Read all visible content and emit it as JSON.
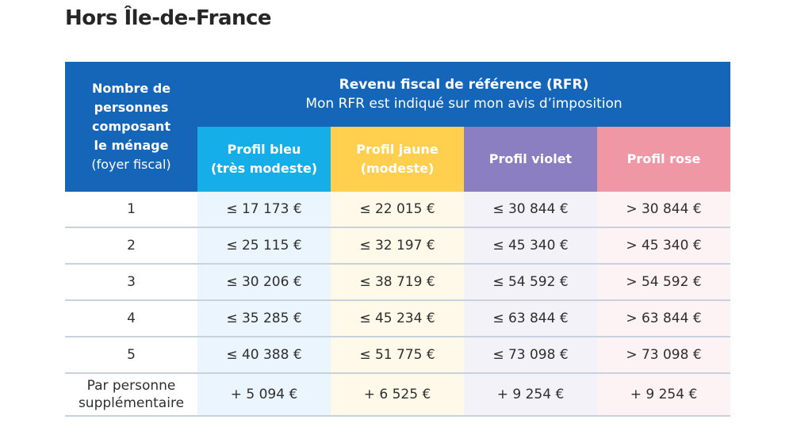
{
  "title": "Hors Île-de-France",
  "header": {
    "household_line1": "Nombre de",
    "household_line2": "personnes",
    "household_line3": "composant",
    "household_line4": "le ménage",
    "household_line5": "(foyer fiscal)",
    "rfr_title": "Revenu fiscal de référence (RFR)",
    "rfr_subtitle": "Mon RFR est indiqué sur mon avis d’imposition",
    "profiles": [
      {
        "line1": "Profil bleu",
        "line2": "(très modeste)",
        "color": "#15aee8"
      },
      {
        "line1": "Profil jaune",
        "line2": "(modeste)",
        "color": "#ffcf4d"
      },
      {
        "line1": "Profil violet",
        "line2": "",
        "color": "#8b7fc1"
      },
      {
        "line1": "Profil rose",
        "line2": "",
        "color": "#ef97a4"
      }
    ]
  },
  "rows": [
    {
      "label": "1",
      "label2": "",
      "values": [
        "≤ 17 173 €",
        "≤ 22 015 €",
        "≤ 30 844 €",
        "> 30 844 €"
      ]
    },
    {
      "label": "2",
      "label2": "",
      "values": [
        "≤ 25 115 €",
        "≤ 32 197 €",
        "≤ 45 340 €",
        "> 45 340 €"
      ]
    },
    {
      "label": "3",
      "label2": "",
      "values": [
        "≤ 30 206 €",
        "≤ 38 719 €",
        "≤ 54 592 €",
        "> 54 592 €"
      ]
    },
    {
      "label": "4",
      "label2": "",
      "values": [
        "≤ 35 285 €",
        "≤ 45 234 €",
        "≤ 63 844 €",
        "> 63 844 €"
      ]
    },
    {
      "label": "5",
      "label2": "",
      "values": [
        "≤ 40 388 €",
        "≤ 51 775 €",
        "≤ 73 098 €",
        "> 73 098 €"
      ]
    },
    {
      "label": "Par personne",
      "label2": "supplémentaire",
      "values": [
        "+ 5 094 €",
        "+ 6 525 €",
        "+ 9 254 €",
        "+ 9 254 €"
      ]
    }
  ],
  "colors": {
    "header_bg": "#1565b8",
    "blue_cell": "#ebf5fd",
    "yellow_cell": "#fff9ea",
    "violet_cell": "#f3f2f9",
    "pink_cell": "#fdf2f4"
  }
}
